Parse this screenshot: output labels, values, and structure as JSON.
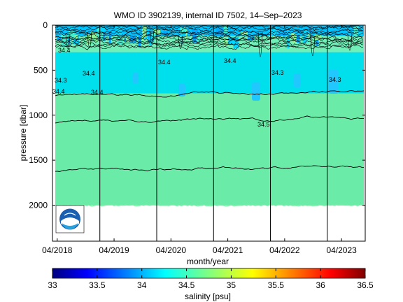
{
  "chart_data": {
    "type": "heatmap",
    "title": "WMO ID 3902139, internal ID 7502, 14–Sep–2023",
    "xlabel": "month/year",
    "ylabel": "pressure [dbar]",
    "x_tick_labels": [
      "04/2018",
      "04/2019",
      "04/2020",
      "04/2021",
      "04/2022",
      "04/2023"
    ],
    "x_range": [
      "2018-03",
      "2023-09"
    ],
    "y_ticks": [
      0,
      500,
      1000,
      1500,
      2000
    ],
    "y_range": [
      0,
      2400
    ],
    "y_reversed": true,
    "data_bottom_pressure": 2000,
    "year_boundaries": [
      "2019-01",
      "2020-01",
      "2021-01",
      "2022-01",
      "2023-01"
    ],
    "colorbar": {
      "label": "salinity [psu]",
      "min": 33,
      "max": 36.5,
      "tick_labels": [
        "33",
        "33.5",
        "34",
        "34.5",
        "35",
        "35.5",
        "36",
        "36.5"
      ]
    },
    "contour_labels": [
      "34.4",
      "34.4",
      "34.4",
      "34.4",
      "34.3",
      "34.3",
      "34.4",
      "34.4",
      "34.3",
      "34.5"
    ],
    "salinity_layers": [
      {
        "from_pressure": 0,
        "to_pressure": 120,
        "salinity": 34.2
      },
      {
        "from_pressure": 120,
        "to_pressure": 300,
        "salinity": 34.55
      },
      {
        "from_pressure": 300,
        "to_pressure": 760,
        "salinity": 34.38
      },
      {
        "from_pressure": 760,
        "to_pressure": 2000,
        "salinity": 34.62
      }
    ],
    "contour_levels": [
      {
        "level": 34.4,
        "mean_pressure": 780
      },
      {
        "level": 34.5,
        "mean_pressure": 1080
      },
      {
        "level": 34.6,
        "mean_pressure": 1620
      }
    ],
    "colors": {
      "surface_mixed": "#00c4ff",
      "upper_fresh": "#70f0b8",
      "intermediate": "#00e0ec",
      "deep": "#6aeca8",
      "no_data": "#ffffff"
    },
    "logo": "noaa-logo"
  }
}
